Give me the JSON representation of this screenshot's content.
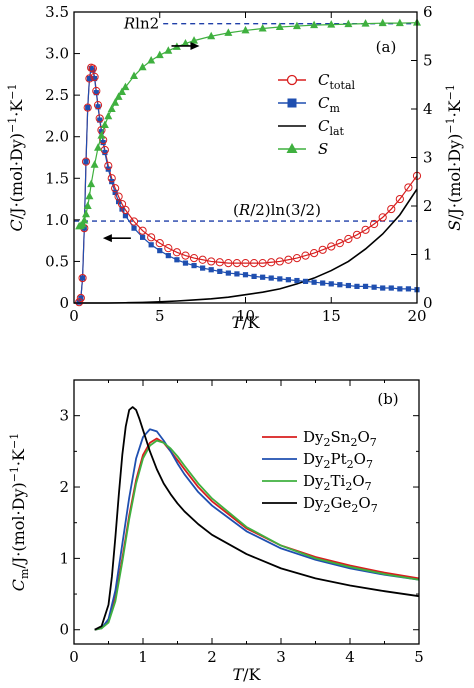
{
  "chart_data": [
    {
      "id": "a",
      "type": "scatter",
      "panel_label": "(a)",
      "xlabel": "T/K",
      "ylabel": "C/J·(mol·Dy)⁻¹·K⁻¹",
      "y2label": "S/J·(mol·Dy)⁻¹·K⁻¹",
      "xlim": [
        0,
        20
      ],
      "ylim": [
        0,
        3.5
      ],
      "y2lim": [
        0,
        6
      ],
      "xticks": [
        "0",
        "5",
        "10",
        "15",
        "20"
      ],
      "yticks": [
        "0",
        "0.5",
        "1.0",
        "1.5",
        "2.0",
        "2.5",
        "3.0",
        "3.5"
      ],
      "y2ticks": [
        "0",
        "1",
        "2",
        "3",
        "4",
        "5",
        "6"
      ],
      "annotations": {
        "rln2": "Rln2",
        "rln32": "(R/2)ln(3/2)"
      },
      "reference_lines": [
        {
          "label": "Rln2",
          "y2_value": 5.76,
          "x_start": 5.2,
          "x_end": 20,
          "color": "#1f3fa8"
        },
        {
          "label": "(R/2)ln(3/2)",
          "y2_value": 1.69,
          "x_start": 0,
          "x_end": 20,
          "color": "#1f3fa8"
        }
      ],
      "arrows": [
        {
          "direction": "right",
          "x": 6.5,
          "y2": 5.3
        },
        {
          "direction": "left",
          "x": 2.5,
          "y": 0.78
        }
      ],
      "legend": [
        {
          "name": "C_total",
          "main": "C",
          "sub": "total",
          "marker": "open-circle",
          "color": "#d81e1e"
        },
        {
          "name": "C_m",
          "main": "C",
          "sub": "m",
          "marker": "filled-square",
          "color": "#1f4fb0"
        },
        {
          "name": "C_lat",
          "main": "C",
          "sub": "lat",
          "marker": "line",
          "color": "#000000"
        },
        {
          "name": "S",
          "main": "S",
          "sub": "",
          "marker": "filled-triangle",
          "color": "#3fb03f"
        }
      ],
      "series": [
        {
          "name": "C_total",
          "axis": "left",
          "color": "#d81e1e",
          "x": [
            0.3,
            0.4,
            0.5,
            0.6,
            0.7,
            0.8,
            0.9,
            1.0,
            1.1,
            1.2,
            1.3,
            1.4,
            1.5,
            1.6,
            1.7,
            1.8,
            2.0,
            2.2,
            2.4,
            2.6,
            2.8,
            3.0,
            3.5,
            4,
            4.5,
            5,
            5.5,
            6,
            6.5,
            7,
            7.5,
            8,
            8.5,
            9,
            9.5,
            10,
            10.5,
            11,
            11.5,
            12,
            12.5,
            13,
            13.5,
            14,
            14.5,
            15,
            15.5,
            16,
            16.5,
            17,
            17.5,
            18,
            18.5,
            19,
            19.5,
            20
          ],
          "y": [
            0.01,
            0.06,
            0.3,
            0.9,
            1.7,
            2.35,
            2.7,
            2.83,
            2.82,
            2.72,
            2.55,
            2.38,
            2.22,
            2.08,
            1.96,
            1.84,
            1.65,
            1.5,
            1.38,
            1.28,
            1.19,
            1.12,
            0.98,
            0.87,
            0.79,
            0.72,
            0.66,
            0.61,
            0.57,
            0.54,
            0.52,
            0.5,
            0.49,
            0.48,
            0.48,
            0.48,
            0.48,
            0.48,
            0.49,
            0.5,
            0.52,
            0.54,
            0.57,
            0.6,
            0.64,
            0.68,
            0.72,
            0.77,
            0.82,
            0.88,
            0.95,
            1.03,
            1.13,
            1.25,
            1.39,
            1.53
          ]
        },
        {
          "name": "C_m",
          "axis": "left",
          "color": "#1f4fb0",
          "x": [
            0.3,
            0.4,
            0.5,
            0.6,
            0.7,
            0.8,
            0.9,
            1.0,
            1.1,
            1.2,
            1.3,
            1.4,
            1.5,
            1.6,
            1.7,
            1.8,
            2.0,
            2.2,
            2.4,
            2.6,
            2.8,
            3.0,
            3.5,
            4,
            4.5,
            5,
            5.5,
            6,
            6.5,
            7,
            7.5,
            8,
            8.5,
            9,
            9.5,
            10,
            10.5,
            11,
            11.5,
            12,
            12.5,
            13,
            13.5,
            14,
            14.5,
            15,
            15.5,
            16,
            16.5,
            17,
            17.5,
            18,
            18.5,
            19,
            19.5,
            20
          ],
          "y": [
            0.01,
            0.06,
            0.3,
            0.9,
            1.7,
            2.35,
            2.7,
            2.82,
            2.8,
            2.7,
            2.53,
            2.36,
            2.2,
            2.06,
            1.93,
            1.81,
            1.61,
            1.46,
            1.33,
            1.22,
            1.13,
            1.05,
            0.9,
            0.79,
            0.7,
            0.63,
            0.57,
            0.52,
            0.48,
            0.45,
            0.42,
            0.4,
            0.38,
            0.36,
            0.35,
            0.34,
            0.32,
            0.31,
            0.3,
            0.29,
            0.28,
            0.27,
            0.26,
            0.25,
            0.24,
            0.23,
            0.22,
            0.21,
            0.2,
            0.2,
            0.19,
            0.18,
            0.18,
            0.17,
            0.17,
            0.16
          ]
        },
        {
          "name": "C_lat",
          "axis": "left",
          "color": "#000000",
          "x": [
            0,
            1,
            2,
            3,
            4,
            5,
            6,
            7,
            8,
            9,
            10,
            11,
            12,
            13,
            14,
            15,
            16,
            17,
            18,
            19,
            20
          ],
          "y": [
            0,
            0,
            0,
            0.003,
            0.007,
            0.014,
            0.024,
            0.037,
            0.05,
            0.07,
            0.1,
            0.13,
            0.17,
            0.23,
            0.3,
            0.39,
            0.5,
            0.65,
            0.83,
            1.06,
            1.37
          ]
        },
        {
          "name": "S",
          "axis": "right",
          "color": "#3fb03f",
          "x": [
            0.3,
            0.4,
            0.5,
            0.6,
            0.7,
            0.8,
            0.9,
            1.0,
            1.2,
            1.4,
            1.6,
            1.8,
            2.0,
            2.2,
            2.4,
            2.6,
            2.8,
            3.0,
            3.5,
            4,
            4.5,
            5,
            5.5,
            6,
            6.5,
            7,
            8,
            9,
            10,
            11,
            12,
            13,
            14,
            15,
            16,
            17,
            18,
            19,
            20
          ],
          "y": [
            1.58,
            1.59,
            1.62,
            1.7,
            1.83,
            2.0,
            2.2,
            2.45,
            2.85,
            3.2,
            3.45,
            3.67,
            3.85,
            4.0,
            4.13,
            4.25,
            4.35,
            4.45,
            4.68,
            4.86,
            5.0,
            5.11,
            5.2,
            5.28,
            5.35,
            5.41,
            5.5,
            5.57,
            5.62,
            5.66,
            5.69,
            5.71,
            5.73,
            5.74,
            5.75,
            5.76,
            5.77,
            5.77,
            5.78
          ]
        }
      ]
    },
    {
      "id": "b",
      "type": "line",
      "panel_label": "(b)",
      "xlabel": "T/K",
      "ylabel": "C_m/J·(mol·Dy)⁻¹·K⁻¹",
      "xlim": [
        0,
        5
      ],
      "ylim": [
        -0.2,
        3.5
      ],
      "xticks": [
        "0",
        "1",
        "2",
        "3",
        "4",
        "5"
      ],
      "yticks": [
        "0",
        "1",
        "2",
        "3"
      ],
      "legend": [
        {
          "name": "Dy2Sn2O7",
          "parts": [
            "Dy",
            "2",
            "Sn",
            "2",
            "O",
            "7"
          ],
          "color": "#d81e1e"
        },
        {
          "name": "Dy2Pt2O7",
          "parts": [
            "Dy",
            "2",
            "Pt",
            "2",
            "O",
            "7"
          ],
          "color": "#1f4fb0"
        },
        {
          "name": "Dy2Ti2O7",
          "parts": [
            "Dy",
            "2",
            "Ti",
            "2",
            "O",
            "7"
          ],
          "color": "#3fb03f"
        },
        {
          "name": "Dy2Ge2O7",
          "parts": [
            "Dy",
            "2",
            "Ge",
            "2",
            "O",
            "7"
          ],
          "color": "#000000"
        }
      ],
      "series": [
        {
          "name": "Dy2Sn2O7",
          "color": "#d81e1e",
          "x": [
            0.3,
            0.4,
            0.5,
            0.6,
            0.7,
            0.8,
            0.9,
            1.0,
            1.1,
            1.2,
            1.3,
            1.4,
            1.5,
            1.6,
            1.8,
            2.0,
            2.5,
            3.0,
            3.5,
            4.0,
            4.5,
            5.0
          ],
          "y": [
            0,
            0.02,
            0.12,
            0.45,
            1.0,
            1.6,
            2.1,
            2.45,
            2.62,
            2.68,
            2.62,
            2.5,
            2.38,
            2.25,
            2.0,
            1.8,
            1.42,
            1.18,
            1.02,
            0.9,
            0.8,
            0.72
          ]
        },
        {
          "name": "Dy2Pt2O7",
          "color": "#1f4fb0",
          "x": [
            0.3,
            0.4,
            0.5,
            0.6,
            0.7,
            0.8,
            0.9,
            1.0,
            1.1,
            1.2,
            1.3,
            1.4,
            1.5,
            1.6,
            1.8,
            2.0,
            2.5,
            3.0,
            3.5,
            4.0,
            4.5,
            5.0
          ],
          "y": [
            0,
            0.02,
            0.15,
            0.55,
            1.2,
            1.85,
            2.4,
            2.7,
            2.81,
            2.78,
            2.65,
            2.5,
            2.33,
            2.18,
            1.93,
            1.74,
            1.38,
            1.14,
            0.98,
            0.86,
            0.77,
            0.7
          ]
        },
        {
          "name": "Dy2Ti2O7",
          "color": "#3fb03f",
          "x": [
            0.3,
            0.4,
            0.5,
            0.6,
            0.7,
            0.8,
            0.9,
            1.0,
            1.1,
            1.2,
            1.3,
            1.4,
            1.5,
            1.6,
            1.8,
            2.0,
            2.5,
            3.0,
            3.5,
            4.0,
            4.5,
            5.0
          ],
          "y": [
            0,
            0.02,
            0.1,
            0.4,
            0.95,
            1.55,
            2.05,
            2.4,
            2.58,
            2.65,
            2.62,
            2.54,
            2.43,
            2.3,
            2.05,
            1.84,
            1.44,
            1.18,
            1.0,
            0.88,
            0.78,
            0.7
          ]
        },
        {
          "name": "Dy2Ge2O7",
          "color": "#000000",
          "x": [
            0.3,
            0.4,
            0.5,
            0.55,
            0.6,
            0.65,
            0.7,
            0.75,
            0.8,
            0.85,
            0.9,
            0.95,
            1.0,
            1.1,
            1.2,
            1.3,
            1.4,
            1.5,
            1.6,
            1.8,
            2.0,
            2.5,
            3.0,
            3.5,
            4.0,
            4.5,
            5.0
          ],
          "y": [
            0,
            0.05,
            0.35,
            0.75,
            1.3,
            1.9,
            2.45,
            2.85,
            3.08,
            3.12,
            3.08,
            2.95,
            2.8,
            2.5,
            2.25,
            2.05,
            1.9,
            1.77,
            1.66,
            1.48,
            1.33,
            1.06,
            0.86,
            0.72,
            0.62,
            0.54,
            0.47
          ]
        }
      ]
    }
  ]
}
